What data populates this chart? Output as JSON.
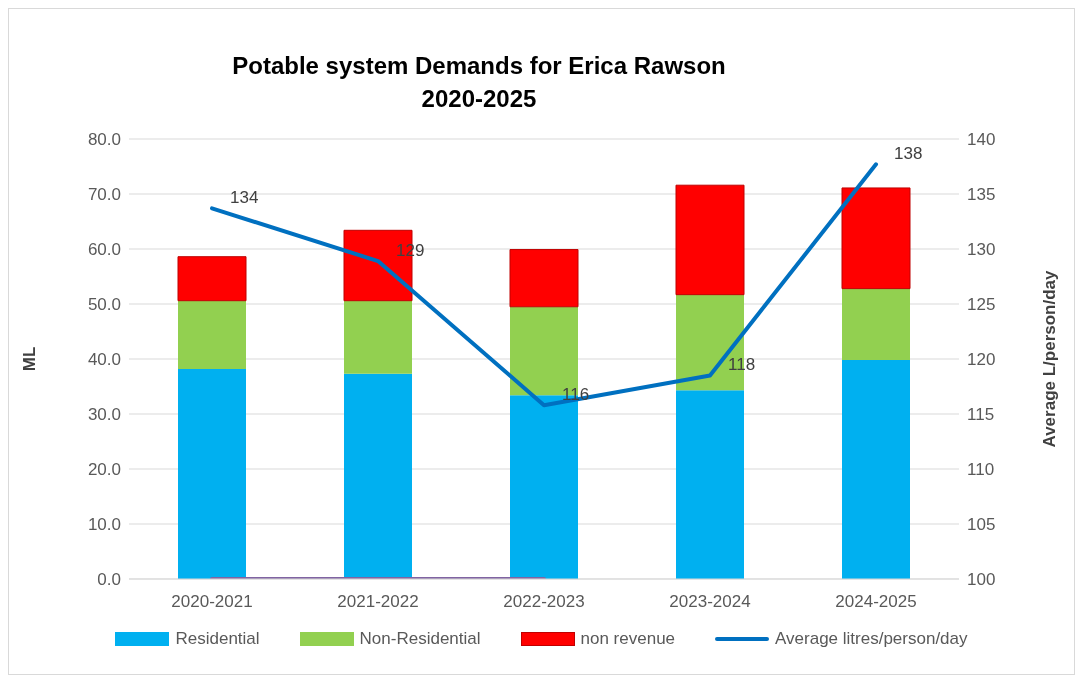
{
  "chart_data": {
    "type": "bar",
    "title": "Potable system Demands for Erica Rawson\n2020-2025",
    "ylabel": "ML",
    "y2label": "Average L/person/day",
    "categories": [
      "2020-2021",
      "2021-2022",
      "2022-2023",
      "2023-2024",
      "2024-2025"
    ],
    "stacked": true,
    "series": [
      {
        "name": "Residential",
        "color": "#00b0f0",
        "values": [
          38.2,
          37.3,
          33.4,
          34.3,
          39.8
        ]
      },
      {
        "name": "Non-Residential",
        "color": "#92d050",
        "values": [
          12.4,
          13.3,
          16.1,
          17.4,
          13.0
        ]
      },
      {
        "name": "non revenue",
        "color": "#ff0000",
        "values": [
          8.0,
          12.8,
          10.4,
          19.9,
          18.3
        ]
      },
      {
        "name": "Average litres/person/day",
        "type": "line",
        "axis": "y2",
        "color": "#0070c0",
        "values": [
          133.7,
          128.9,
          115.8,
          118.5,
          137.7
        ],
        "value_labels": [
          "134",
          "129",
          "116",
          "118",
          "138"
        ]
      },
      {
        "type": "line",
        "color": "#8064a2",
        "values": [
          0,
          0,
          0,
          null,
          null
        ]
      }
    ],
    "ylim": [
      0,
      80
    ],
    "yticks": [
      {
        "value": 0,
        "label": "0.0"
      },
      {
        "value": 10,
        "label": "10.0"
      },
      {
        "value": 20,
        "label": "20.0"
      },
      {
        "value": 30,
        "label": "30.0"
      },
      {
        "value": 40,
        "label": "40.0"
      },
      {
        "value": 50,
        "label": "50.0"
      },
      {
        "value": 60,
        "label": "60.0"
      },
      {
        "value": 70,
        "label": "70.0"
      },
      {
        "value": 80,
        "label": "80.0"
      }
    ],
    "y2lim": [
      100,
      140
    ],
    "y2ticks": [
      100,
      105,
      110,
      115,
      120,
      125,
      130,
      135,
      140
    ],
    "grid": "y",
    "legend": "bottom",
    "marker": "none",
    "line_style": "solid"
  }
}
